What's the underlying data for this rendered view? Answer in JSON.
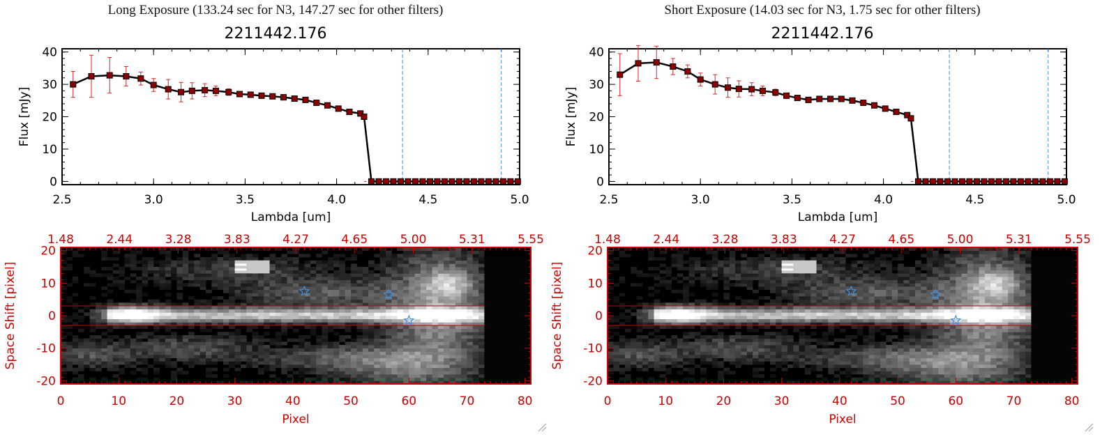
{
  "panels": [
    {
      "title": "Long Exposure (133.24 sec for N3, 147.27 sec for other filters)",
      "object_id": "2211442.176"
    },
    {
      "title": "Short Exposure (14.03 sec for N3, 1.75 sec for other filters)",
      "object_id": "2211442.176"
    }
  ],
  "colors": {
    "line": "#000000",
    "marker": "#8b0000",
    "error_bar": "#e02020",
    "vline": "#3a8ee6",
    "image_axis": "#cc0000",
    "aperture_line": "#cc0000",
    "star": "#3a8ee6"
  },
  "chart_data": [
    {
      "type": "line",
      "title": "",
      "xlabel": "Lambda [um]",
      "ylabel": "Flux [mJy]",
      "xlim": [
        2.5,
        5.0
      ],
      "ylim": [
        -1,
        41
      ],
      "xticks": [
        "2.5",
        "3.0",
        "3.5",
        "4.0",
        "4.5",
        "5.0"
      ],
      "yticks": [
        "0",
        "10",
        "20",
        "30",
        "40"
      ],
      "vlines": [
        4.36,
        4.9
      ],
      "x": [
        2.56,
        2.66,
        2.76,
        2.85,
        2.93,
        3.0,
        3.08,
        3.15,
        3.21,
        3.28,
        3.34,
        3.41,
        3.47,
        3.53,
        3.59,
        3.65,
        3.71,
        3.77,
        3.83,
        3.89,
        3.95,
        4.01,
        4.07,
        4.13,
        4.15,
        4.19,
        4.23,
        4.27,
        4.31,
        4.35,
        4.39,
        4.43,
        4.47,
        4.51,
        4.55,
        4.59,
        4.63,
        4.67,
        4.71,
        4.75,
        4.79,
        4.83,
        4.87,
        4.91,
        4.95,
        4.99
      ],
      "y": [
        30.0,
        32.5,
        32.8,
        32.5,
        31.8,
        29.8,
        28.5,
        27.6,
        28.0,
        28.2,
        28.0,
        27.6,
        27.0,
        26.8,
        26.5,
        26.3,
        26.0,
        25.6,
        25.2,
        24.3,
        23.5,
        22.5,
        21.5,
        21.0,
        20.0,
        0,
        0,
        0,
        0,
        0,
        0,
        0,
        0,
        0,
        0,
        0,
        0,
        0,
        0,
        0,
        0,
        0,
        0,
        0,
        0,
        0
      ],
      "yerr": [
        4.0,
        6.5,
        5.5,
        3.0,
        2.0,
        2.0,
        3.0,
        3.0,
        2.5,
        2.0,
        1.5,
        1.0,
        0.8,
        0.6,
        0.6,
        0.5,
        0.5,
        0.5,
        0.5,
        0.5,
        0.5,
        0.5,
        0.5,
        0.5,
        0.5,
        0,
        0,
        0,
        0,
        0,
        0,
        0,
        0,
        0,
        0,
        0,
        0,
        0,
        0,
        0,
        0,
        0,
        0,
        0,
        0,
        0
      ]
    },
    {
      "type": "line",
      "title": "",
      "xlabel": "Lambda [um]",
      "ylabel": "Flux [mJy]",
      "xlim": [
        2.5,
        5.0
      ],
      "ylim": [
        -1,
        41
      ],
      "xticks": [
        "2.5",
        "3.0",
        "3.5",
        "4.0",
        "4.5",
        "5.0"
      ],
      "yticks": [
        "0",
        "10",
        "20",
        "30",
        "40"
      ],
      "vlines": [
        4.36,
        4.9
      ],
      "x": [
        2.56,
        2.66,
        2.76,
        2.85,
        2.93,
        3.0,
        3.08,
        3.15,
        3.21,
        3.28,
        3.34,
        3.41,
        3.47,
        3.53,
        3.59,
        3.65,
        3.71,
        3.77,
        3.83,
        3.89,
        3.95,
        4.01,
        4.07,
        4.13,
        4.15,
        4.19,
        4.23,
        4.27,
        4.31,
        4.35,
        4.39,
        4.43,
        4.47,
        4.51,
        4.55,
        4.59,
        4.63,
        4.67,
        4.71,
        4.75,
        4.79,
        4.83,
        4.87,
        4.91,
        4.95,
        4.99
      ],
      "y": [
        33.0,
        36.5,
        36.8,
        35.5,
        34.0,
        31.5,
        30.0,
        29.0,
        28.6,
        28.5,
        28.0,
        27.5,
        26.5,
        25.8,
        25.2,
        25.5,
        25.5,
        25.5,
        25.0,
        24.3,
        23.5,
        22.5,
        21.5,
        20.5,
        19.5,
        0,
        0,
        0,
        0,
        0,
        0,
        0,
        0,
        0,
        0,
        0,
        0,
        0,
        0,
        0,
        0,
        0,
        0,
        0,
        0,
        0
      ],
      "yerr": [
        6.5,
        5.5,
        5.0,
        2.5,
        2.0,
        2.0,
        3.0,
        3.0,
        2.5,
        2.0,
        1.5,
        1.0,
        0.8,
        0.6,
        0.6,
        0.5,
        0.5,
        0.5,
        0.5,
        0.5,
        0.5,
        0.5,
        0.5,
        0.5,
        0.5,
        0,
        0,
        0,
        0,
        0,
        0,
        0,
        0,
        0,
        0,
        0,
        0,
        0,
        0,
        0,
        0,
        0,
        0,
        0,
        0,
        0
      ]
    },
    {
      "type": "heatmap",
      "title": "",
      "xlabel": "Pixel",
      "ylabel": "Space Shift [pixel]",
      "xlim": [
        0,
        81
      ],
      "ylim": [
        -21,
        21
      ],
      "xticks": [
        "0",
        "10",
        "20",
        "30",
        "40",
        "50",
        "60",
        "70",
        "80"
      ],
      "yticks": [
        "-20",
        "-10",
        "0",
        "10",
        "20"
      ],
      "top_ticks": [
        "1.48",
        "2.44",
        "3.28",
        "3.83",
        "4.27",
        "4.65",
        "5.00",
        "5.31",
        "5.55"
      ],
      "aperture_lines": [
        3,
        -3
      ],
      "stars": [
        [
          42,
          7.5
        ],
        [
          56.5,
          6.5
        ],
        [
          60,
          -1.5
        ]
      ],
      "data_extent_x": 73
    },
    {
      "type": "heatmap",
      "title": "",
      "xlabel": "Pixel",
      "ylabel": "Space Shift [pixel]",
      "xlim": [
        0,
        81
      ],
      "ylim": [
        -21,
        21
      ],
      "xticks": [
        "0",
        "10",
        "20",
        "30",
        "40",
        "50",
        "60",
        "70",
        "80"
      ],
      "yticks": [
        "-20",
        "-10",
        "0",
        "10",
        "20"
      ],
      "top_ticks": [
        "1.48",
        "2.44",
        "3.28",
        "3.83",
        "4.27",
        "4.65",
        "5.00",
        "5.31",
        "5.55"
      ],
      "aperture_lines": [
        3,
        -3
      ],
      "stars": [
        [
          42,
          7.5
        ],
        [
          56.5,
          6.5
        ],
        [
          60,
          -1.5
        ]
      ],
      "data_extent_x": 73
    }
  ]
}
